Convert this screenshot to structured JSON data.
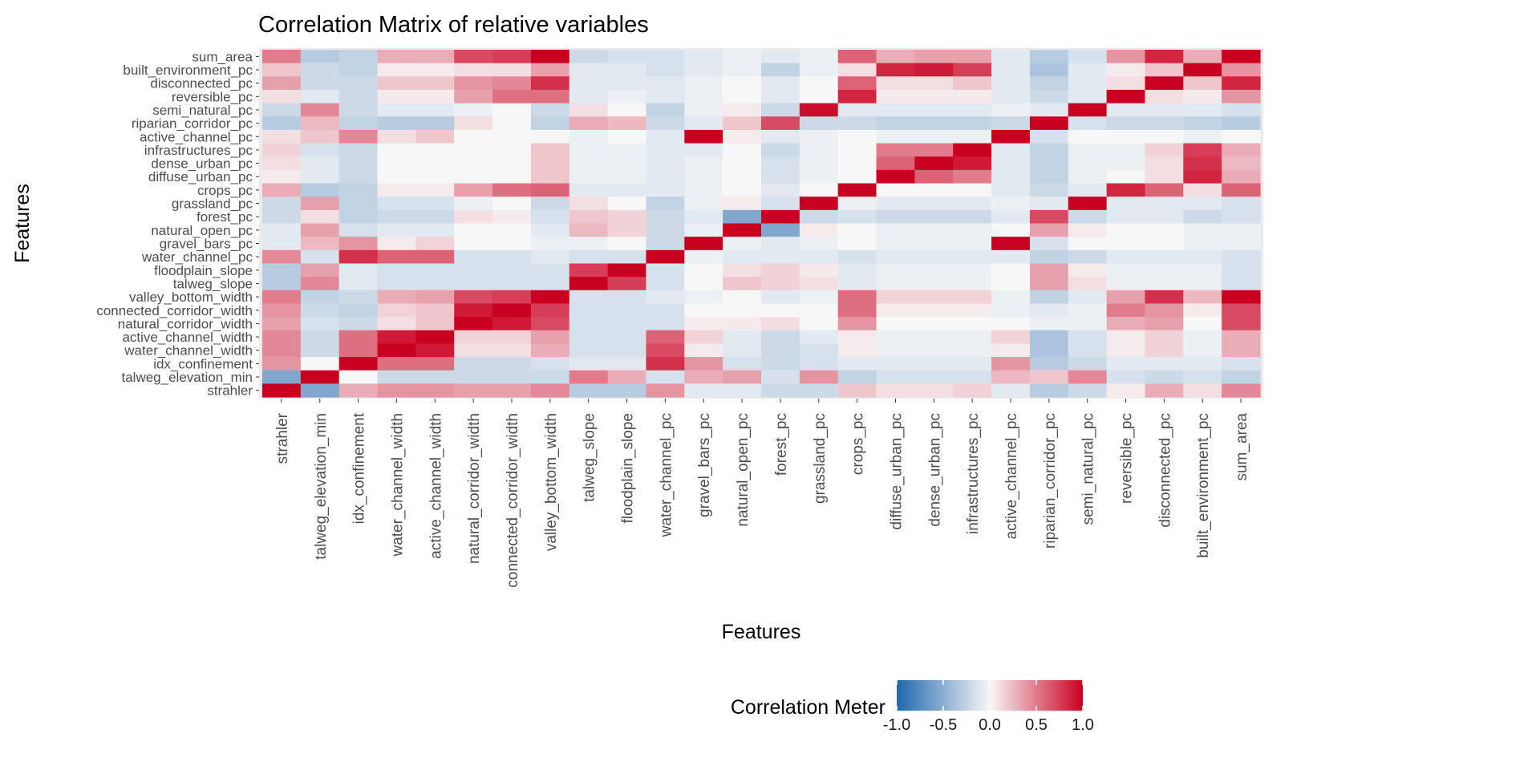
{
  "chart_data": {
    "type": "heatmap",
    "title": "Correlation Matrix of relative variables",
    "xlabel": "Features",
    "ylabel": "Features",
    "x_categories": [
      "strahler",
      "talweg_elevation_min",
      "idx_confinement",
      "water_channel_width",
      "active_channel_width",
      "natural_corridor_width",
      "connected_corridor_width",
      "valley_bottom_width",
      "talweg_slope",
      "floodplain_slope",
      "water_channel_pc",
      "gravel_bars_pc",
      "natural_open_pc",
      "forest_pc",
      "grassland_pc",
      "crops_pc",
      "diffuse_urban_pc",
      "dense_urban_pc",
      "infrastructures_pc",
      "active_channel_pc",
      "riparian_corridor_pc",
      "semi_natural_pc",
      "reversible_pc",
      "disconnected_pc",
      "built_environment_pc",
      "sum_area"
    ],
    "y_categories_top_to_bottom": [
      "sum_area",
      "built_environment_pc",
      "disconnected_pc",
      "reversible_pc",
      "semi_natural_pc",
      "riparian_corridor_pc",
      "active_channel_pc",
      "infrastructures_pc",
      "dense_urban_pc",
      "diffuse_urban_pc",
      "crops_pc",
      "grassland_pc",
      "forest_pc",
      "natural_open_pc",
      "gravel_bars_pc",
      "water_channel_pc",
      "floodplain_slope",
      "talweg_slope",
      "valley_bottom_width",
      "connected_corridor_width",
      "natural_corridor_width",
      "active_channel_width",
      "water_channel_width",
      "idx_confinement",
      "talweg_elevation_min",
      "strahler"
    ],
    "values": [
      [
        0.5,
        -0.3,
        -0.25,
        0.3,
        0.3,
        0.7,
        0.75,
        1.0,
        -0.2,
        -0.15,
        -0.15,
        -0.1,
        -0.05,
        -0.1,
        -0.05,
        0.6,
        0.3,
        0.35,
        0.35,
        -0.1,
        -0.3,
        -0.15,
        0.4,
        0.85,
        0.3,
        1.0
      ],
      [
        0.2,
        -0.2,
        -0.25,
        0.05,
        0.05,
        0.1,
        0.1,
        0.35,
        -0.1,
        -0.1,
        -0.15,
        -0.1,
        -0.05,
        -0.25,
        -0.05,
        0.1,
        0.85,
        0.9,
        0.75,
        -0.1,
        -0.35,
        -0.1,
        0.05,
        0.2,
        1.0,
        0.4
      ],
      [
        0.35,
        -0.2,
        -0.2,
        0.2,
        0.2,
        0.4,
        0.45,
        0.8,
        -0.1,
        -0.1,
        -0.1,
        -0.05,
        0.0,
        -0.1,
        0.0,
        0.6,
        0.1,
        0.1,
        0.2,
        -0.1,
        -0.25,
        -0.1,
        0.1,
        1.0,
        0.2,
        0.85
      ],
      [
        0.1,
        -0.1,
        -0.2,
        0.05,
        0.05,
        0.35,
        0.55,
        0.55,
        -0.1,
        -0.05,
        -0.1,
        -0.05,
        0.0,
        -0.1,
        0.0,
        0.85,
        0.05,
        0.05,
        0.05,
        -0.1,
        -0.2,
        -0.1,
        1.0,
        0.1,
        0.05,
        0.4
      ],
      [
        -0.2,
        0.45,
        -0.2,
        -0.1,
        -0.1,
        -0.05,
        0.0,
        -0.2,
        0.1,
        0.0,
        -0.25,
        -0.05,
        0.05,
        -0.2,
        0.95,
        -0.1,
        -0.1,
        -0.1,
        -0.1,
        -0.05,
        -0.1,
        1.0,
        -0.1,
        -0.1,
        -0.1,
        -0.15
      ],
      [
        -0.3,
        0.25,
        -0.25,
        -0.3,
        -0.3,
        0.1,
        0.0,
        -0.25,
        0.3,
        0.25,
        -0.2,
        -0.1,
        0.2,
        0.7,
        -0.2,
        -0.2,
        -0.25,
        -0.25,
        -0.25,
        -0.2,
        1.0,
        -0.15,
        -0.2,
        -0.2,
        -0.25,
        -0.3
      ],
      [
        0.1,
        0.2,
        0.45,
        0.1,
        0.2,
        0.0,
        0.0,
        0.0,
        -0.05,
        0.0,
        -0.1,
        1.0,
        0.05,
        -0.1,
        -0.05,
        0.0,
        -0.05,
        -0.05,
        -0.05,
        1.0,
        -0.15,
        0.0,
        0.0,
        0.0,
        -0.05,
        0.0
      ],
      [
        0.15,
        -0.15,
        -0.2,
        0.0,
        0.0,
        0.0,
        0.0,
        0.2,
        -0.05,
        -0.05,
        -0.1,
        -0.1,
        0.0,
        -0.2,
        -0.05,
        0.0,
        0.5,
        0.5,
        1.0,
        -0.1,
        -0.25,
        -0.05,
        -0.05,
        0.15,
        0.75,
        0.3
      ],
      [
        0.1,
        -0.1,
        -0.2,
        0.0,
        0.0,
        0.0,
        0.0,
        0.2,
        -0.05,
        -0.05,
        -0.1,
        -0.05,
        0.0,
        -0.15,
        -0.05,
        0.0,
        0.6,
        1.0,
        0.9,
        -0.1,
        -0.25,
        -0.05,
        -0.05,
        0.1,
        0.8,
        0.25
      ],
      [
        0.05,
        -0.1,
        -0.2,
        0.0,
        0.0,
        0.0,
        0.0,
        0.2,
        -0.05,
        -0.05,
        -0.1,
        -0.05,
        0.0,
        -0.15,
        -0.05,
        0.0,
        1.0,
        0.6,
        0.5,
        -0.1,
        -0.25,
        -0.05,
        0.0,
        0.1,
        0.85,
        0.3
      ],
      [
        0.3,
        -0.3,
        -0.25,
        0.05,
        0.05,
        0.35,
        0.55,
        0.6,
        -0.1,
        -0.1,
        -0.1,
        -0.05,
        0.0,
        -0.1,
        0.0,
        1.0,
        0.0,
        0.0,
        0.0,
        -0.1,
        -0.2,
        -0.1,
        0.85,
        0.6,
        0.1,
        0.6
      ],
      [
        -0.2,
        0.35,
        -0.25,
        -0.15,
        -0.15,
        -0.05,
        0.0,
        -0.2,
        0.1,
        0.0,
        -0.25,
        -0.05,
        0.05,
        -0.15,
        1.0,
        -0.05,
        -0.1,
        -0.1,
        -0.1,
        -0.05,
        -0.1,
        1.0,
        -0.1,
        -0.1,
        -0.1,
        -0.15
      ],
      [
        -0.2,
        0.1,
        -0.25,
        -0.2,
        -0.2,
        0.1,
        0.05,
        -0.15,
        0.2,
        0.15,
        -0.2,
        -0.1,
        -0.55,
        1.0,
        -0.2,
        -0.15,
        -0.2,
        -0.2,
        -0.2,
        -0.1,
        0.7,
        -0.2,
        -0.1,
        -0.1,
        -0.2,
        -0.15
      ],
      [
        -0.1,
        0.35,
        -0.15,
        -0.1,
        -0.1,
        0.0,
        0.0,
        -0.1,
        0.25,
        0.15,
        -0.2,
        -0.05,
        1.0,
        -0.55,
        0.05,
        0.0,
        -0.05,
        -0.05,
        -0.05,
        0.0,
        0.35,
        0.05,
        0.0,
        0.0,
        -0.05,
        -0.05
      ],
      [
        -0.1,
        0.25,
        0.4,
        0.05,
        0.15,
        0.0,
        0.0,
        -0.05,
        -0.05,
        0.0,
        -0.2,
        1.0,
        -0.05,
        -0.1,
        -0.05,
        0.0,
        -0.05,
        -0.05,
        -0.05,
        1.0,
        -0.15,
        0.0,
        0.0,
        0.0,
        -0.05,
        -0.05
      ],
      [
        0.45,
        -0.15,
        0.8,
        0.6,
        0.6,
        -0.15,
        -0.15,
        -0.1,
        -0.15,
        -0.15,
        1.0,
        -0.05,
        -0.1,
        -0.1,
        -0.1,
        -0.15,
        -0.1,
        -0.1,
        -0.1,
        -0.1,
        -0.25,
        -0.2,
        -0.1,
        -0.1,
        -0.1,
        -0.15
      ],
      [
        -0.3,
        0.35,
        -0.1,
        -0.15,
        -0.15,
        -0.15,
        -0.15,
        -0.15,
        0.75,
        1.0,
        -0.15,
        0.0,
        0.1,
        0.15,
        0.05,
        -0.1,
        -0.05,
        -0.05,
        -0.05,
        0.0,
        0.35,
        0.05,
        -0.05,
        -0.05,
        -0.05,
        -0.15
      ],
      [
        -0.3,
        0.45,
        -0.1,
        -0.15,
        -0.15,
        -0.15,
        -0.15,
        -0.15,
        1.0,
        0.75,
        -0.15,
        0.0,
        0.2,
        0.15,
        0.1,
        -0.1,
        -0.05,
        -0.05,
        -0.05,
        0.0,
        0.35,
        0.1,
        -0.05,
        -0.05,
        -0.05,
        -0.15
      ],
      [
        0.5,
        -0.25,
        -0.2,
        0.3,
        0.35,
        0.7,
        0.75,
        1.0,
        -0.15,
        -0.15,
        -0.1,
        -0.05,
        0.0,
        -0.1,
        -0.05,
        0.55,
        0.15,
        0.15,
        0.15,
        -0.05,
        -0.25,
        -0.1,
        0.35,
        0.8,
        0.25,
        1.0
      ],
      [
        0.4,
        -0.2,
        -0.25,
        0.15,
        0.2,
        0.9,
        1.0,
        0.75,
        -0.15,
        -0.15,
        -0.15,
        0.0,
        0.0,
        0.0,
        0.0,
        0.55,
        0.05,
        0.05,
        0.05,
        -0.05,
        -0.1,
        -0.05,
        0.5,
        0.4,
        0.05,
        0.7
      ],
      [
        0.35,
        -0.15,
        -0.2,
        0.1,
        0.2,
        1.0,
        0.9,
        0.7,
        -0.15,
        -0.15,
        -0.15,
        0.05,
        0.05,
        0.1,
        0.0,
        0.4,
        0.0,
        0.0,
        0.0,
        0.0,
        -0.05,
        -0.05,
        0.3,
        0.35,
        0.0,
        0.7
      ],
      [
        0.45,
        -0.2,
        0.55,
        0.9,
        1.0,
        0.15,
        0.15,
        0.35,
        -0.15,
        -0.15,
        0.6,
        0.15,
        -0.1,
        -0.2,
        -0.1,
        0.05,
        -0.05,
        -0.05,
        -0.05,
        0.15,
        -0.35,
        -0.15,
        0.05,
        0.15,
        -0.05,
        0.3
      ],
      [
        0.45,
        -0.2,
        0.55,
        1.0,
        0.9,
        0.1,
        0.1,
        0.3,
        -0.15,
        -0.15,
        0.7,
        0.05,
        -0.1,
        -0.2,
        -0.15,
        0.05,
        -0.05,
        -0.05,
        -0.05,
        0.05,
        -0.35,
        -0.15,
        0.05,
        0.15,
        -0.05,
        0.3
      ],
      [
        0.4,
        0.0,
        1.0,
        0.55,
        0.55,
        -0.2,
        -0.2,
        -0.15,
        -0.1,
        -0.1,
        0.8,
        0.4,
        -0.15,
        -0.2,
        -0.15,
        -0.1,
        -0.1,
        -0.1,
        -0.1,
        0.4,
        -0.3,
        -0.2,
        -0.1,
        -0.1,
        -0.1,
        -0.15
      ],
      [
        -0.55,
        1.0,
        0.0,
        -0.2,
        -0.2,
        -0.2,
        -0.2,
        -0.2,
        0.5,
        0.3,
        -0.15,
        0.3,
        0.35,
        -0.15,
        0.4,
        -0.25,
        -0.15,
        -0.15,
        -0.15,
        0.25,
        0.2,
        0.45,
        -0.15,
        -0.2,
        -0.15,
        -0.25
      ],
      [
        1.0,
        -0.55,
        0.3,
        0.4,
        0.4,
        0.35,
        0.35,
        0.45,
        -0.3,
        -0.3,
        0.4,
        -0.1,
        -0.1,
        -0.2,
        -0.2,
        0.2,
        0.1,
        0.1,
        0.15,
        -0.1,
        -0.3,
        -0.2,
        0.05,
        0.3,
        0.1,
        0.45
      ]
    ],
    "legend": {
      "title": "Correlation Meter",
      "ticks": [
        "-1.0",
        "-0.5",
        "0.0",
        "0.5",
        "1.0"
      ],
      "range": [
        -1,
        1
      ],
      "colors": [
        "#2166ac",
        "#f7f7f7",
        "#ca0020"
      ]
    }
  }
}
